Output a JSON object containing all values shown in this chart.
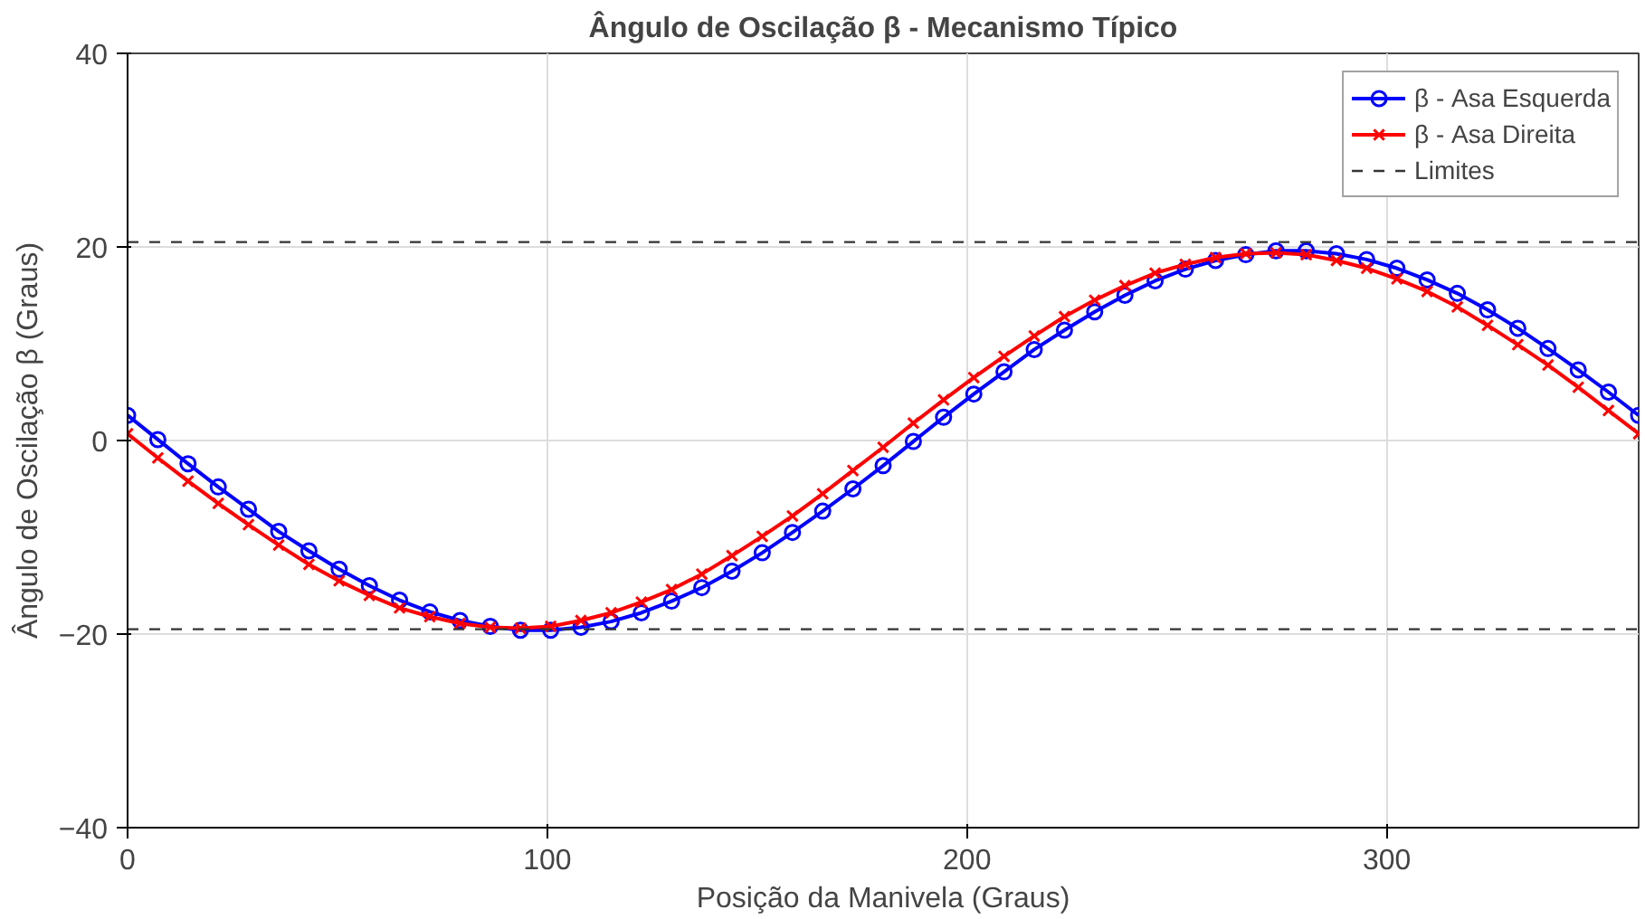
{
  "chart_data": {
    "type": "line",
    "title": "Ângulo de Oscilação β - Mecanismo Típico",
    "xlabel": "Posição da Manivela (Graus)",
    "ylabel": "Ângulo de Oscilação β (Graus)",
    "x": [
      0,
      7.2,
      14.4,
      21.6,
      28.8,
      36,
      43.2,
      50.4,
      57.6,
      64.8,
      72,
      79.2,
      86.4,
      93.6,
      100.8,
      108,
      115.2,
      122.4,
      129.6,
      136.8,
      144,
      151.2,
      158.4,
      165.6,
      172.8,
      180,
      187.2,
      194.4,
      201.6,
      208.8,
      216,
      223.2,
      230.4,
      237.6,
      244.8,
      252,
      259.2,
      266.4,
      273.6,
      280.8,
      288,
      295.2,
      302.4,
      309.6,
      316.8,
      324,
      331.2,
      338.4,
      345.6,
      352.8,
      360
    ],
    "series": [
      {
        "name": "β - Asa Esquerda",
        "color": "#0000ff",
        "marker": "circle",
        "values": [
          2.6,
          0.1,
          -2.4,
          -4.8,
          -7.1,
          -9.4,
          -11.4,
          -13.3,
          -15.0,
          -16.5,
          -17.7,
          -18.6,
          -19.2,
          -19.6,
          -19.6,
          -19.3,
          -18.7,
          -17.8,
          -16.6,
          -15.2,
          -13.5,
          -11.6,
          -9.5,
          -7.3,
          -5.0,
          -2.6,
          -0.1,
          2.4,
          4.8,
          7.1,
          9.4,
          11.4,
          13.3,
          15.0,
          16.5,
          17.7,
          18.6,
          19.2,
          19.6,
          19.6,
          19.3,
          18.7,
          17.8,
          16.6,
          15.2,
          13.5,
          11.6,
          9.5,
          7.3,
          5.0,
          2.6
        ]
      },
      {
        "name": "β - Asa Direita",
        "color": "#ff0000",
        "marker": "cross",
        "values": [
          0.7,
          -1.8,
          -4.2,
          -6.5,
          -8.7,
          -10.8,
          -12.8,
          -14.5,
          -16.0,
          -17.3,
          -18.2,
          -18.9,
          -19.3,
          -19.4,
          -19.2,
          -18.6,
          -17.8,
          -16.7,
          -15.4,
          -13.8,
          -11.9,
          -9.9,
          -7.8,
          -5.5,
          -3.1,
          -0.7,
          1.8,
          4.2,
          6.5,
          8.7,
          10.8,
          12.8,
          14.5,
          16.0,
          17.3,
          18.2,
          18.9,
          19.3,
          19.4,
          19.2,
          18.6,
          17.8,
          16.7,
          15.4,
          13.8,
          11.9,
          9.9,
          7.8,
          5.5,
          3.1,
          0.7
        ]
      }
    ],
    "ref_lines": [
      {
        "axis": "y",
        "value": 20.5,
        "label": "Limites",
        "color": "#333333",
        "line_style": "dashed"
      },
      {
        "axis": "y",
        "value": -19.5,
        "color": "#333333",
        "line_style": "dashed"
      }
    ],
    "xlim": [
      0,
      360
    ],
    "ylim": [
      -40,
      40
    ],
    "xticks": [
      0,
      100,
      200,
      300
    ],
    "yticks": [
      -40,
      -20,
      0,
      20,
      40
    ],
    "grid": true,
    "legend": "top right",
    "line_style": "solid"
  }
}
